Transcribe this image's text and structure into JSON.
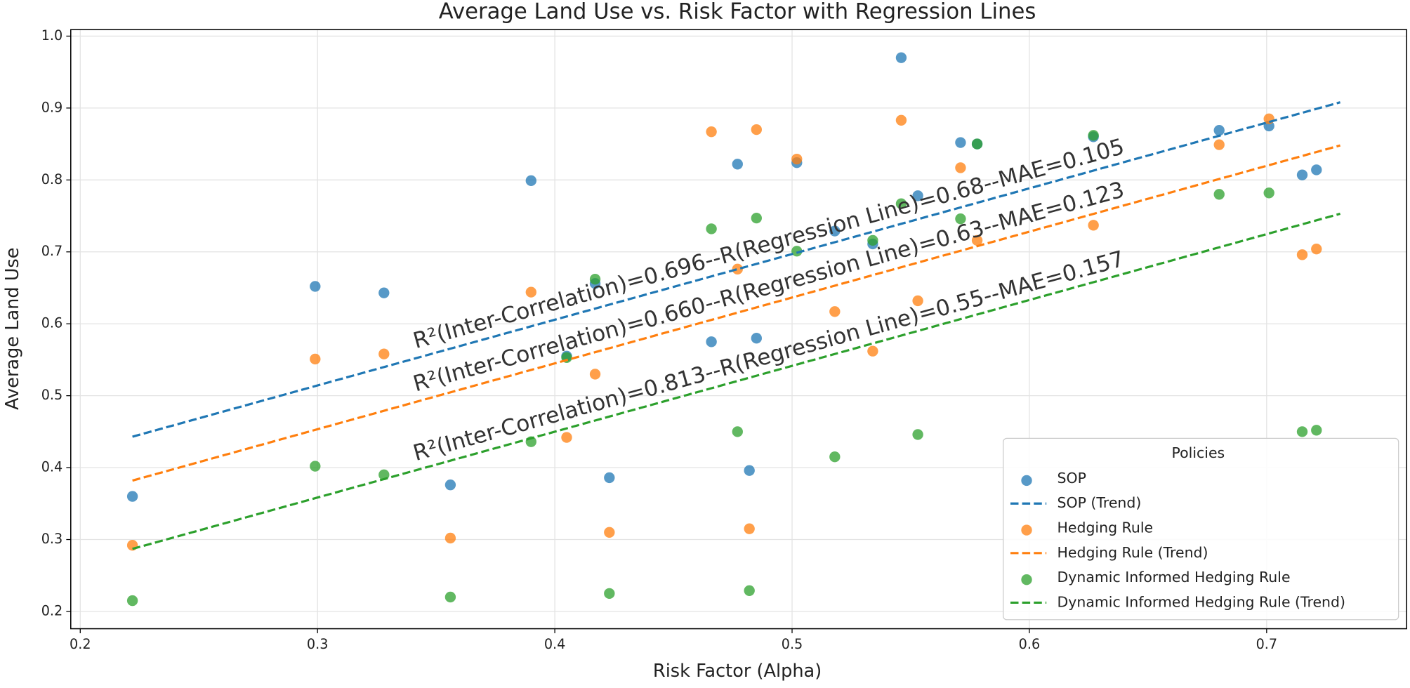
{
  "chart_data": {
    "type": "scatter",
    "title": "Average Land Use vs. Risk Factor with Regression Lines",
    "x_label": "Risk Factor (Alpha)",
    "y_label": "Average Land Use",
    "x": [
      0.222,
      0.299,
      0.328,
      0.356,
      0.39,
      0.405,
      0.417,
      0.423,
      0.466,
      0.477,
      0.482,
      0.485,
      0.502,
      0.518,
      0.534,
      0.546,
      0.553,
      0.571,
      0.578,
      0.627,
      0.68,
      0.701,
      0.715,
      0.721
    ],
    "series": [
      {
        "name": "SOP",
        "color": "#1f77b4",
        "values": [
          0.36,
          0.652,
          0.643,
          0.376,
          0.799,
          0.555,
          0.656,
          0.386,
          0.575,
          0.822,
          0.396,
          0.58,
          0.824,
          0.729,
          0.711,
          0.97,
          0.778,
          0.852,
          0.85,
          0.86,
          0.869,
          0.875,
          0.807,
          0.814
        ]
      },
      {
        "name": "Hedging Rule",
        "color": "#ff7f0e",
        "values": [
          0.292,
          0.551,
          0.558,
          0.302,
          0.644,
          0.442,
          0.53,
          0.31,
          0.867,
          0.676,
          0.315,
          0.87,
          0.829,
          0.617,
          0.562,
          0.883,
          0.632,
          0.817,
          0.716,
          0.737,
          0.849,
          0.885,
          0.696,
          0.704
        ]
      },
      {
        "name": "Dynamic Informed Hedging Rule",
        "color": "#2ca02c",
        "values": [
          0.215,
          0.402,
          0.39,
          0.22,
          0.436,
          0.553,
          0.662,
          0.225,
          0.732,
          0.45,
          0.229,
          0.747,
          0.701,
          0.415,
          0.716,
          0.767,
          0.446,
          0.746,
          0.85,
          0.862,
          0.78,
          0.782,
          0.45,
          0.452
        ]
      }
    ],
    "trends": [
      {
        "name": "SOP (Trend)",
        "color": "#1f77b4",
        "x": [
          0.222,
          0.731
        ],
        "values": [
          0.443,
          0.908
        ]
      },
      {
        "name": "Hedging Rule (Trend)",
        "color": "#ff7f0e",
        "x": [
          0.222,
          0.731
        ],
        "values": [
          0.382,
          0.848
        ]
      },
      {
        "name": "Dynamic Informed Hedging Rule (Trend)",
        "color": "#2ca02c",
        "x": [
          0.222,
          0.731
        ],
        "values": [
          0.287,
          0.753
        ]
      }
    ],
    "annotations": [
      "R²(Inter-Correlation)=0.696--R(Regression Line)=0.68--MAE=0.105",
      "R²(Inter-Correlation)=0.660--R(Regression Line)=0.63--MAE=0.123",
      "R²(Inter-Correlation)=0.813--R(Regression Line)=0.55--MAE=0.157"
    ],
    "legend_title": "Policies",
    "legend_position": "lower right",
    "xlim": [
      0.196,
      0.759
    ],
    "ylim": [
      0.176,
      1.009
    ],
    "xticks": [
      0.2,
      0.3,
      0.4,
      0.5,
      0.6,
      0.7
    ],
    "yticks": [
      0.2,
      0.3,
      0.4,
      0.5,
      0.6,
      0.7,
      0.8,
      0.9,
      {
        "value": 1,
        "label": "1.0"
      }
    ],
    "grid": true
  }
}
